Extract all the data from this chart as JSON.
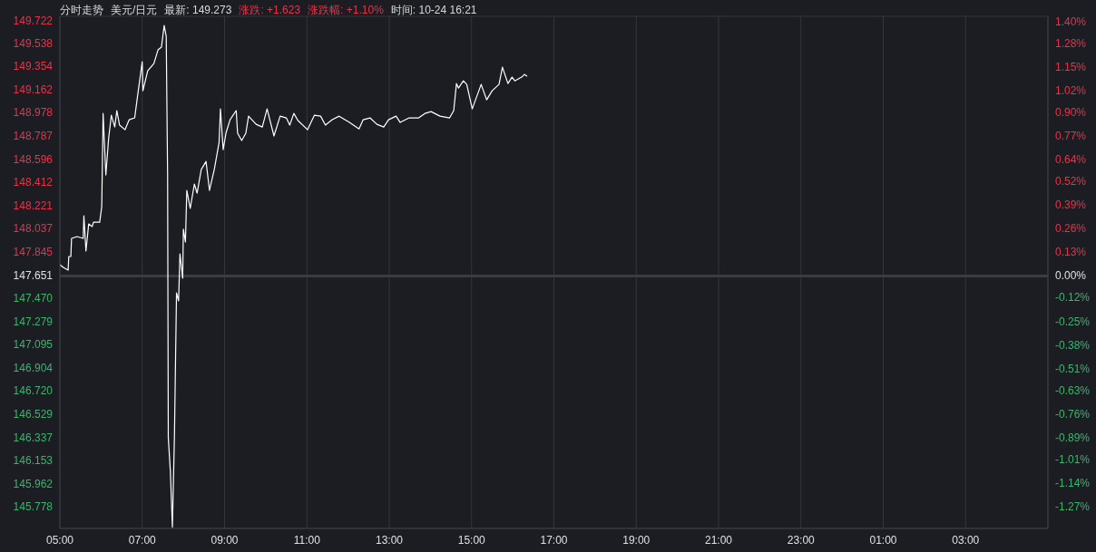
{
  "chart_data": {
    "type": "line",
    "title": "分时走势",
    "subtitle": "美元/日元",
    "annotations": [
      "最新: 149.273",
      "涨跌: +1.623",
      "涨跌幅: +1.10%",
      "时间: 10-24 16:21"
    ],
    "x": [
      "--10-24T05:00",
      "--10-24T05:05",
      "--10-24T05:12",
      "--10-24T05:13",
      "--10-24T05:16",
      "--10-24T05:17",
      "--10-24T05:25",
      "--10-24T05:34",
      "--10-24T05:35",
      "--10-24T05:38",
      "--10-24T05:42",
      "--10-24T05:47",
      "--10-24T05:49",
      "--10-24T05:58",
      "--10-24T06:01",
      "--10-24T06:03",
      "--10-24T06:07",
      "--10-24T06:11",
      "--10-24T06:15",
      "--10-24T06:20",
      "--10-24T06:23",
      "--10-24T06:27",
      "--10-24T06:35",
      "--10-24T06:41",
      "--10-24T06:49",
      "--10-24T06:53",
      "--10-24T07:00",
      "--10-24T07:01",
      "--10-24T07:08",
      "--10-24T07:17",
      "--10-24T07:23",
      "--10-24T07:28",
      "--10-24T07:32",
      "--10-24T07:35",
      "--10-24T07:37",
      "--10-24T07:38",
      "--10-24T07:41",
      "--10-24T07:44",
      "--10-24T07:47",
      "--10-24T07:50",
      "--10-24T07:53",
      "--10-24T07:55",
      "--10-24T07:59",
      "--10-24T08:00",
      "--10-24T08:03",
      "--10-24T08:05",
      "--10-24T08:10",
      "--10-24T08:16",
      "--10-24T08:20",
      "--10-24T08:26",
      "--10-24T08:33",
      "--10-24T08:38",
      "--10-24T08:45",
      "--10-24T08:49",
      "--10-24T08:52",
      "--10-24T08:54",
      "--10-24T08:58",
      "--10-24T09:02",
      "--10-24T09:08",
      "--10-24T09:17",
      "--10-24T09:19",
      "--10-24T09:25",
      "--10-24T09:31",
      "--10-24T09:35",
      "--10-24T09:46",
      "--10-24T09:55",
      "--10-24T10:02",
      "--10-24T10:12",
      "--10-24T10:21",
      "--10-24T10:30",
      "--10-24T10:35",
      "--10-24T10:41",
      "--10-24T10:47",
      "--10-24T11:01",
      "--10-24T11:11",
      "--10-24T11:20",
      "--10-24T11:27",
      "--10-24T11:37",
      "--10-24T11:47",
      "--10-24T12:02",
      "--10-24T12:16",
      "--10-24T12:22",
      "--10-24T12:32",
      "--10-24T12:42",
      "--10-24T12:52",
      "--10-24T12:59",
      "--10-24T13:10",
      "--10-24T13:16",
      "--10-24T13:29",
      "--10-24T13:43",
      "--10-24T13:52",
      "--10-24T14:01",
      "--10-24T14:14",
      "--10-24T14:28",
      "--10-24T14:34",
      "--10-24T14:38",
      "--10-24T14:41",
      "--10-24T14:48",
      "--10-24T14:53",
      "--10-24T15:01",
      "--10-24T15:14",
      "--10-24T15:22",
      "--10-24T15:30",
      "--10-24T15:40",
      "--10-24T15:45",
      "--10-24T15:53",
      "--10-24T15:59",
      "--10-24T16:03",
      "--10-24T16:13",
      "--10-24T16:17",
      "--10-24T16:21"
    ],
    "series": [
      {
        "color": "#ffffff",
        "values": [
          147.743,
          147.72,
          147.698,
          147.809,
          147.809,
          147.956,
          147.971,
          147.956,
          148.14,
          147.853,
          148.074,
          148.052,
          148.088,
          148.088,
          148.214,
          148.971,
          148.471,
          148.765,
          148.957,
          148.861,
          148.994,
          148.876,
          148.839,
          148.92,
          148.935,
          149.104,
          149.391,
          149.155,
          149.317,
          149.376,
          149.487,
          149.509,
          149.685,
          149.597,
          148.478,
          146.337,
          146.065,
          145.61,
          146.359,
          147.514,
          147.448,
          147.831,
          147.632,
          148.03,
          147.927,
          148.346,
          148.199,
          148.398,
          148.324,
          148.515,
          148.581,
          148.346,
          148.515,
          148.64,
          148.736,
          149.008,
          148.677,
          148.81,
          148.92,
          148.994,
          148.81,
          148.751,
          148.81,
          148.949,
          148.883,
          148.861,
          149.008,
          148.788,
          148.949,
          148.935,
          148.876,
          148.971,
          148.913,
          148.839,
          148.957,
          148.949,
          148.876,
          148.92,
          148.949,
          148.898,
          148.846,
          148.92,
          148.935,
          148.883,
          148.861,
          148.92,
          148.949,
          148.898,
          148.935,
          148.935,
          148.971,
          148.986,
          148.949,
          148.935,
          148.994,
          149.214,
          149.177,
          149.236,
          149.207,
          149.008,
          149.207,
          149.082,
          149.155,
          149.207,
          149.347,
          149.214,
          149.266,
          149.236,
          149.266,
          149.288,
          149.273
        ]
      }
    ],
    "xlim": [
      "--10-24T05:00",
      "--10-25T05:00"
    ],
    "xticks": [
      {
        "value": "--10-24T05:00",
        "label": "05:00"
      },
      {
        "value": "--10-24T07:00",
        "label": "07:00"
      },
      {
        "value": "--10-24T09:00",
        "label": "09:00"
      },
      {
        "value": "--10-24T11:00",
        "label": "11:00"
      },
      {
        "value": "--10-24T13:00",
        "label": "13:00"
      },
      {
        "value": "--10-24T15:00",
        "label": "15:00"
      },
      {
        "value": "--10-24T17:00",
        "label": "17:00"
      },
      {
        "value": "--10-24T19:00",
        "label": "19:00"
      },
      {
        "value": "--10-24T21:00",
        "label": "21:00"
      },
      {
        "value": "--10-24T23:00",
        "label": "23:00"
      },
      {
        "value": "--10-25T01:00",
        "label": "01:00"
      },
      {
        "value": "--10-25T03:00",
        "label": "03:00"
      }
    ],
    "ylim": [
      145.6,
      149.76
    ],
    "yticks": [
      149.722,
      149.538,
      149.354,
      149.162,
      148.978,
      148.787,
      148.596,
      148.412,
      148.221,
      148.037,
      147.845,
      147.651,
      {
        "value": 147.47,
        "label": "147.470"
      },
      147.279,
      147.095,
      146.904,
      {
        "value": 146.72,
        "label": "146.720"
      },
      146.529,
      146.337,
      146.153,
      145.962,
      145.778
    ],
    "y2lim": [
      -1.389,
      1.428
    ],
    "y2ticks": [
      {
        "value": 1.4,
        "label": "1.40%"
      },
      {
        "value": 1.28,
        "label": "1.28%"
      },
      {
        "value": 1.15,
        "label": "1.15%"
      },
      {
        "value": 1.02,
        "label": "1.02%"
      },
      {
        "value": 0.9,
        "label": "0.90%"
      },
      {
        "value": 0.77,
        "label": "0.77%"
      },
      {
        "value": 0.64,
        "label": "0.64%"
      },
      {
        "value": 0.52,
        "label": "0.52%"
      },
      {
        "value": 0.39,
        "label": "0.39%"
      },
      {
        "value": 0.26,
        "label": "0.26%"
      },
      {
        "value": 0.13,
        "label": "0.13%"
      },
      {
        "value": 0,
        "label": "0.00%"
      },
      {
        "value": -0.12,
        "label": "-0.12%"
      },
      {
        "value": -0.25,
        "label": "-0.25%"
      },
      {
        "value": -0.38,
        "label": "-0.38%"
      },
      {
        "value": -0.51,
        "label": "-0.51%"
      },
      {
        "value": -0.63,
        "label": "-0.63%"
      },
      {
        "value": -0.76,
        "label": "-0.76%"
      },
      {
        "value": -0.89,
        "label": "-0.89%"
      },
      {
        "value": -1.01,
        "label": "-1.01%"
      },
      {
        "value": -1.14,
        "label": "-1.14%"
      },
      {
        "value": -1.27,
        "label": "-1.27%"
      }
    ],
    "ref_lines": [
      {
        "axis": "y",
        "value": 147.651,
        "color": "#3a3c42"
      }
    ],
    "grid": true,
    "marker": "none",
    "line_style": "solid"
  }
}
